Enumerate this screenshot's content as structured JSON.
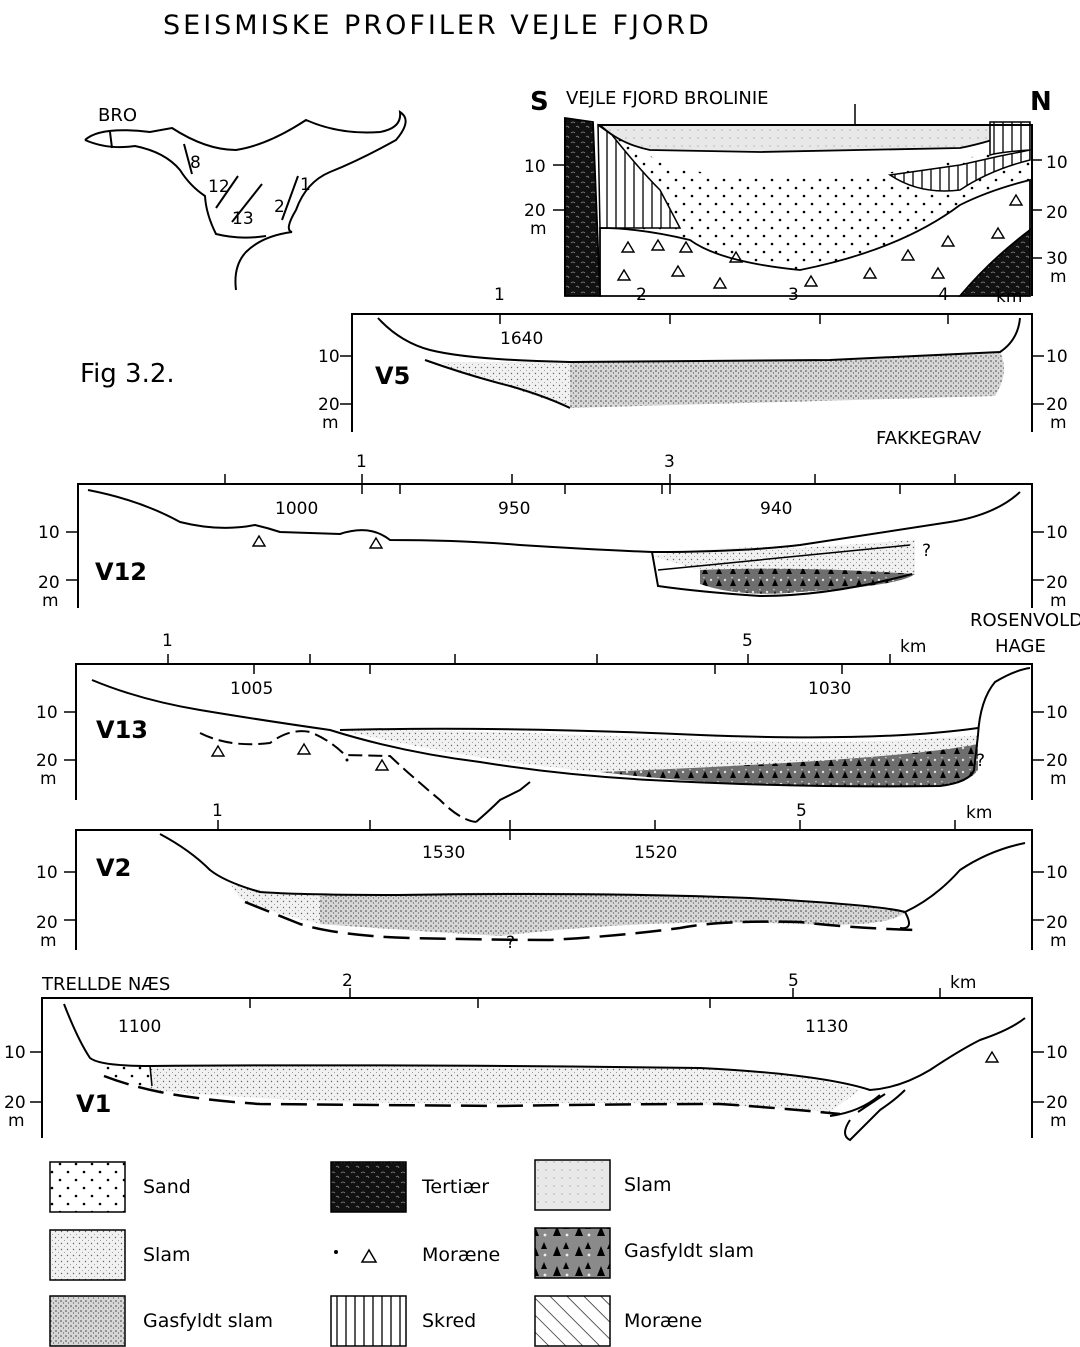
{
  "title": "SEISMISKE PROFILER VEJLE FJORD",
  "figure_label": "Fig 3.2.",
  "map": {
    "bro": "BRO",
    "lines": [
      "8",
      "12",
      "13",
      "2",
      "1"
    ]
  },
  "brolinie": {
    "title": "VEJLE FJORD BROLINIE",
    "south": "S",
    "north": "N",
    "depth_left": [
      "10",
      "20",
      "m"
    ],
    "depth_right": [
      "10",
      "20",
      "30",
      "m"
    ],
    "km_ticks": [
      "1",
      "2",
      "3",
      "4"
    ],
    "km_unit": "km"
  },
  "profiles": {
    "v5": {
      "name": "V5",
      "shotpoints": [
        "1640"
      ],
      "depth": [
        "10",
        "20",
        "m"
      ],
      "place": "FAKKEGRAV"
    },
    "v12": {
      "name": "V12",
      "km_ticks": [
        "1",
        "3"
      ],
      "shotpoints": [
        "1000",
        "950",
        "940"
      ],
      "depth": [
        "10",
        "20",
        "m"
      ],
      "query": "?"
    },
    "v13": {
      "name": "V13",
      "km_ticks": [
        "1",
        "5"
      ],
      "km_unit": "km",
      "place_line1": "ROSENVOLD",
      "place_line2": "HAGE",
      "shotpoints": [
        "1005",
        "1030"
      ],
      "depth": [
        "10",
        "20",
        "m"
      ],
      "query": "?"
    },
    "v2": {
      "name": "V2",
      "km_ticks": [
        "1",
        "5"
      ],
      "km_unit": "km",
      "shotpoints": [
        "1530",
        "1520"
      ],
      "depth": [
        "10",
        "20",
        "m"
      ],
      "query": "?"
    },
    "v1": {
      "name": "V1",
      "place": "TRELLDE NÆS",
      "km_ticks": [
        "2",
        "5"
      ],
      "km_unit": "km",
      "shotpoints": [
        "1100",
        "1130"
      ],
      "depth": [
        "10",
        "20",
        "m"
      ]
    }
  },
  "legend": [
    {
      "label": "Sand",
      "pattern": "sand-dots"
    },
    {
      "label": "Tertiær",
      "pattern": "tertiary-dark"
    },
    {
      "label": "Slam",
      "pattern": "slam-fine"
    },
    {
      "label": "Slam",
      "pattern": "slam-light"
    },
    {
      "label": "Moræne",
      "pattern": "moraine-triangles"
    },
    {
      "label": "Gasfyldt slam",
      "pattern": "gas-slam-dark"
    },
    {
      "label": "Gasfyldt slam",
      "pattern": "gas-slam-stipple"
    },
    {
      "label": "Skred",
      "pattern": "skred-vertical"
    },
    {
      "label": "Moræne",
      "pattern": "moraine-hatch"
    }
  ],
  "colors": {
    "ink": "#000000",
    "paper": "#ffffff"
  }
}
